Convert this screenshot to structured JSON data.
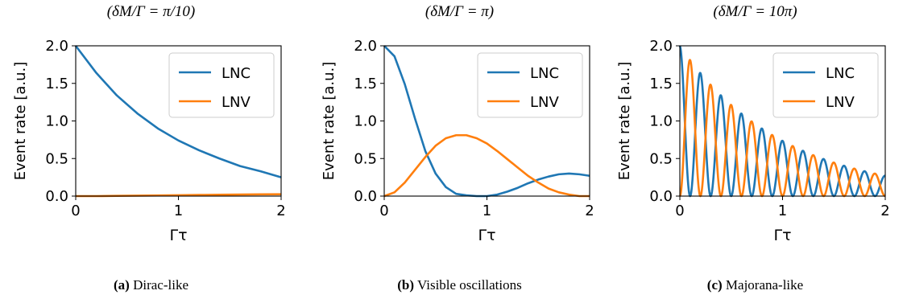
{
  "chart_data": [
    {
      "type": "line",
      "title": "(δM/Γ = π/10)",
      "caption_tag": "(a)",
      "caption_text": "Dirac-like",
      "xlabel": "Γτ",
      "ylabel": "Event rate [a.u.]",
      "xlim": [
        0,
        2
      ],
      "ylim": [
        0,
        2
      ],
      "xticks": [
        "0",
        "1",
        "2"
      ],
      "yticks": [
        "0.0",
        "0.5",
        "1.0",
        "1.5",
        "2.0"
      ],
      "grid": false,
      "legend_position": "top-right",
      "series": [
        {
          "name": "LNC",
          "color": "#1f77b4",
          "x": [
            0,
            0.2,
            0.4,
            0.6,
            0.8,
            1.0,
            1.2,
            1.4,
            1.6,
            1.8,
            2.0
          ],
          "y": [
            2.0,
            1.64,
            1.34,
            1.1,
            0.9,
            0.74,
            0.61,
            0.5,
            0.4,
            0.33,
            0.25
          ]
        },
        {
          "name": "LNV",
          "color": "#ff7f0e",
          "x": [
            0,
            0.2,
            0.4,
            0.6,
            0.8,
            1.0,
            1.2,
            1.4,
            1.6,
            1.8,
            2.0
          ],
          "y": [
            0.0,
            0.0,
            0.003,
            0.006,
            0.009,
            0.012,
            0.015,
            0.018,
            0.021,
            0.023,
            0.025
          ]
        }
      ]
    },
    {
      "type": "line",
      "title": "(δM/Γ = π)",
      "caption_tag": "(b)",
      "caption_text": "Visible oscillations",
      "xlabel": "Γτ",
      "ylabel": "Event rate [a.u.]",
      "xlim": [
        0,
        2
      ],
      "ylim": [
        0,
        2
      ],
      "xticks": [
        "0",
        "1",
        "2"
      ],
      "yticks": [
        "0.0",
        "0.5",
        "1.0",
        "1.5",
        "2.0"
      ],
      "grid": false,
      "legend_position": "top-right",
      "series": [
        {
          "name": "LNC",
          "color": "#1f77b4",
          "x": [
            0,
            0.1,
            0.2,
            0.3,
            0.4,
            0.5,
            0.6,
            0.7,
            0.8,
            0.9,
            1.0,
            1.1,
            1.2,
            1.3,
            1.4,
            1.5,
            1.6,
            1.7,
            1.8,
            1.9,
            2.0
          ],
          "y": [
            2.0,
            1.86,
            1.49,
            1.03,
            0.6,
            0.3,
            0.12,
            0.03,
            0.01,
            0.0,
            0.0,
            0.02,
            0.06,
            0.11,
            0.17,
            0.22,
            0.26,
            0.29,
            0.3,
            0.29,
            0.27
          ]
        },
        {
          "name": "LNV",
          "color": "#ff7f0e",
          "x": [
            0,
            0.1,
            0.2,
            0.3,
            0.4,
            0.5,
            0.6,
            0.7,
            0.8,
            0.9,
            1.0,
            1.1,
            1.2,
            1.3,
            1.4,
            1.5,
            1.6,
            1.7,
            1.8,
            1.9,
            2.0
          ],
          "y": [
            0.0,
            0.05,
            0.18,
            0.35,
            0.52,
            0.67,
            0.77,
            0.81,
            0.81,
            0.77,
            0.7,
            0.6,
            0.49,
            0.38,
            0.27,
            0.18,
            0.1,
            0.05,
            0.02,
            0.0,
            0.0
          ]
        }
      ]
    },
    {
      "type": "line",
      "title": "(δM/Γ = 10π)",
      "caption_tag": "(c)",
      "caption_text": "Majorana-like",
      "xlabel": "Γτ",
      "ylabel": "Event rate [a.u.]",
      "xlim": [
        0,
        2
      ],
      "ylim": [
        0,
        2
      ],
      "xticks": [
        "0",
        "1",
        "2"
      ],
      "yticks": [
        "0.0",
        "0.5",
        "1.0",
        "1.5",
        "2.0"
      ],
      "grid": false,
      "legend_position": "top-right",
      "series": [
        {
          "name": "LNC",
          "color": "#1f77b4",
          "model": "oscillation",
          "damping": 1.0,
          "frequency": 31.416,
          "phase": "cos"
        },
        {
          "name": "LNV",
          "color": "#ff7f0e",
          "model": "oscillation",
          "damping": 1.0,
          "frequency": 31.416,
          "phase": "sin"
        }
      ]
    }
  ]
}
